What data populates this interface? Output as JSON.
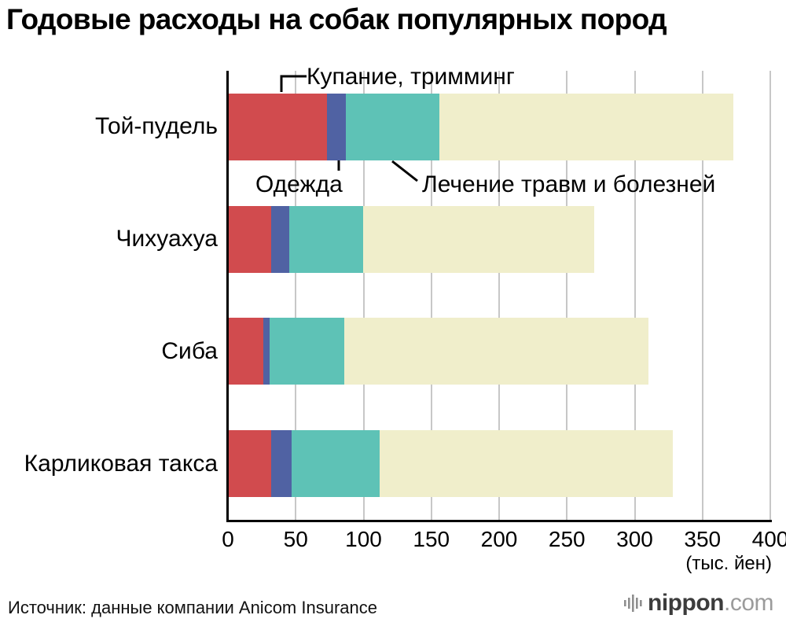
{
  "title": "Годовые расходы на собак популярных пород",
  "chart_data": {
    "type": "bar",
    "orientation": "horizontal",
    "stacked": true,
    "title": "Годовые расходы на собак популярных пород",
    "categories": [
      "Той-пудель",
      "Чихуахуа",
      "Сиба",
      "Карликовая такса"
    ],
    "series": [
      {
        "name": "Купание, тримминг",
        "color": "#d14b4e",
        "values": [
          73,
          32,
          26,
          32
        ]
      },
      {
        "name": "Одежда",
        "color": "#5062a3",
        "values": [
          14,
          13,
          5,
          15
        ]
      },
      {
        "name": "Лечение травм и болезней",
        "color": "#5ec2b6",
        "values": [
          69,
          55,
          55,
          65
        ]
      },
      {
        "name": "",
        "color": "#f0eecb",
        "values": [
          217,
          170,
          224,
          216
        ]
      }
    ],
    "totals": [
      373,
      270,
      310,
      328
    ],
    "xlim": [
      0,
      400
    ],
    "xticks": [
      0,
      50,
      100,
      150,
      200,
      250,
      300,
      350,
      400
    ],
    "x_unit_label": "(тыс. йен)",
    "grid": true,
    "legend_position": "inline-annotations"
  },
  "footer": {
    "source": "Источник: данные компании Anicom Insurance",
    "logo_text": "nippon",
    "logo_suffix": ".com"
  },
  "colors": {
    "grid": "#c7c7c7",
    "axis": "#000000",
    "background": "#ffffff"
  }
}
